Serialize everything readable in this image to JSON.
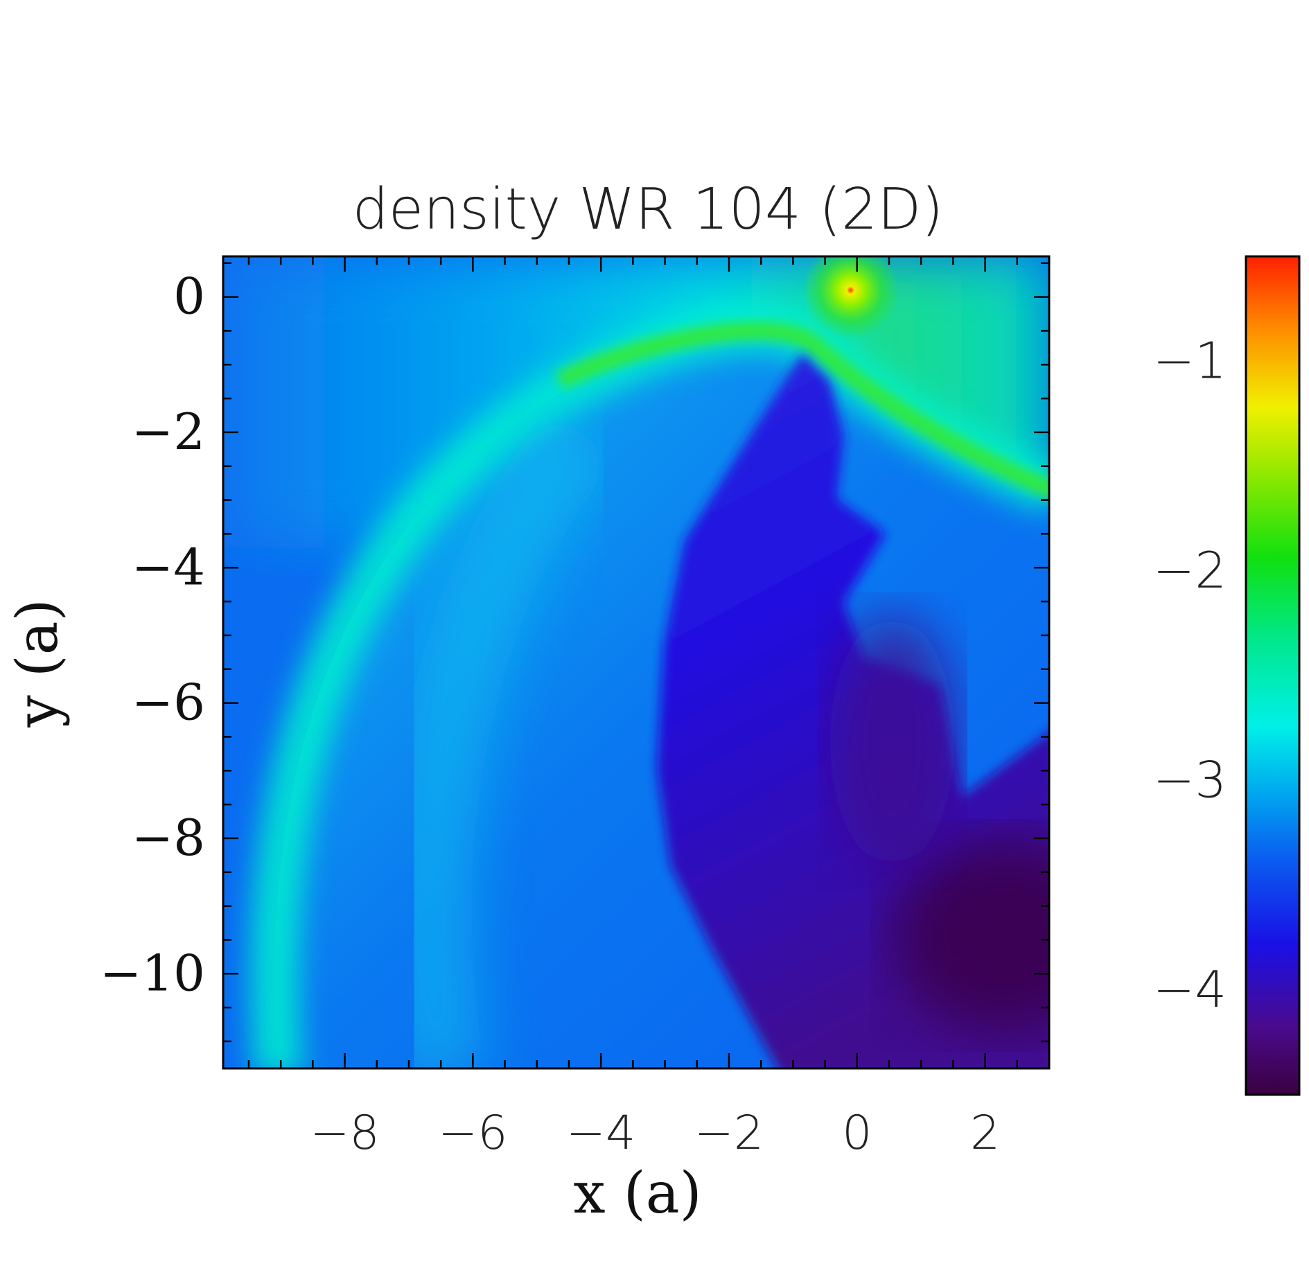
{
  "chart_data": {
    "type": "heatmap",
    "title": "density WR 104 (2D)",
    "xlabel": "x (a)",
    "ylabel": "y (a)",
    "xlim": [
      -9.9,
      3.0
    ],
    "ylim": [
      -11.4,
      0.6
    ],
    "x_ticks": [
      -8,
      -6,
      -4,
      -2,
      0,
      2
    ],
    "x_tick_labels": [
      "−8",
      "−6",
      "−4",
      "−2",
      "0",
      "2"
    ],
    "y_ticks": [
      0,
      -2,
      -4,
      -6,
      -8,
      -10
    ],
    "y_tick_labels": [
      "0",
      "−2",
      "−4",
      "−6",
      "−8",
      "−10"
    ],
    "colorbar": {
      "range": [
        -4.5,
        -0.5
      ],
      "ticks": [
        -1,
        -2,
        -3,
        -4
      ],
      "tick_labels": [
        "−1",
        "−2",
        "−3",
        "−4"
      ],
      "colormap": [
        "#3a0040",
        "#4a0a8c",
        "#1a10e6",
        "#0a5cf0",
        "#00a8f0",
        "#00f0e8",
        "#00e890",
        "#10e010",
        "#90e800",
        "#f0f000",
        "#ff9000",
        "#ff2000"
      ]
    },
    "features": {
      "star_position": [
        -0.1,
        0.1
      ],
      "background_level": -3.4,
      "shock_level": -2.3,
      "cavity_level": -4.2
    }
  }
}
